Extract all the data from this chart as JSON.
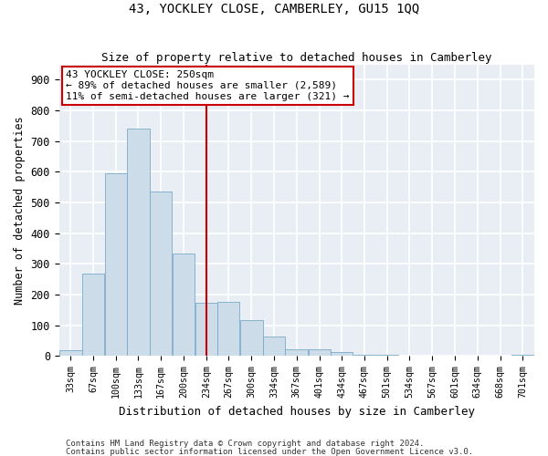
{
  "title": "43, YOCKLEY CLOSE, CAMBERLEY, GU15 1QQ",
  "subtitle": "Size of property relative to detached houses in Camberley",
  "xlabel": "Distribution of detached houses by size in Camberley",
  "ylabel": "Number of detached properties",
  "bar_color": "#ccdce8",
  "bar_edge_color": "#7aaac8",
  "background_color": "#e8eef4",
  "grid_color": "#ffffff",
  "annotation_text": "43 YOCKLEY CLOSE: 250sqm\n← 89% of detached houses are smaller (2,589)\n11% of semi-detached houses are larger (321) →",
  "annotation_box_color": "#cc0000",
  "vline_color": "#cc0000",
  "categories": [
    "33sqm",
    "67sqm",
    "100sqm",
    "133sqm",
    "167sqm",
    "200sqm",
    "234sqm",
    "267sqm",
    "300sqm",
    "334sqm",
    "367sqm",
    "401sqm",
    "434sqm",
    "467sqm",
    "501sqm",
    "534sqm",
    "567sqm",
    "601sqm",
    "634sqm",
    "668sqm",
    "701sqm"
  ],
  "bin_edges": [
    33,
    67,
    100,
    133,
    167,
    200,
    234,
    267,
    300,
    334,
    367,
    401,
    434,
    467,
    501,
    534,
    567,
    601,
    634,
    668,
    701,
    735
  ],
  "bar_heights": [
    20,
    270,
    595,
    740,
    535,
    335,
    175,
    178,
    118,
    65,
    22,
    22,
    12,
    5,
    4,
    2,
    1,
    1,
    0,
    0,
    5
  ],
  "ylim": [
    0,
    950
  ],
  "yticks": [
    0,
    100,
    200,
    300,
    400,
    500,
    600,
    700,
    800,
    900
  ],
  "vline_x_data": 250,
  "footnote1": "Contains HM Land Registry data © Crown copyright and database right 2024.",
  "footnote2": "Contains public sector information licensed under the Open Government Licence v3.0.",
  "fig_width": 6.0,
  "fig_height": 5.0,
  "dpi": 100
}
